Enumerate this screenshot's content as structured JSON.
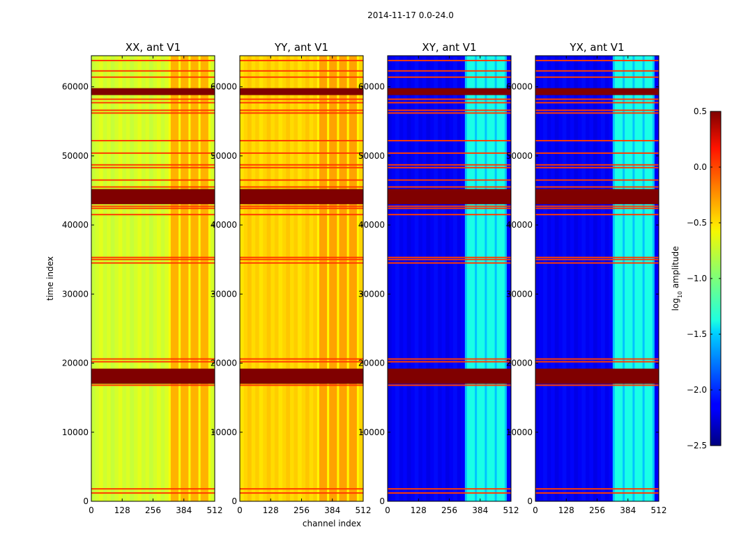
{
  "figure_title": "2014-11-17 0.0-24.0",
  "chart_data": {
    "type": "heatmap",
    "xlabel": "channel index",
    "ylabel": "time index",
    "xlim": [
      0,
      512
    ],
    "ylim": [
      0,
      64500
    ],
    "xticks": [
      0,
      128,
      256,
      384,
      512
    ],
    "yticks": [
      0,
      10000,
      20000,
      30000,
      40000,
      50000,
      60000
    ],
    "xtick_labels": [
      "0",
      "128",
      "256",
      "384",
      "512"
    ],
    "ytick_labels": [
      "0",
      "10000",
      "20000",
      "30000",
      "40000",
      "50000",
      "60000"
    ],
    "panels": [
      {
        "title": "XX, ant V1",
        "base_log10_amp": -0.75,
        "rfi_band_log10_amp": -0.4
      },
      {
        "title": "YY, ant V1",
        "base_log10_amp": -0.5,
        "rfi_band_log10_amp": -0.35
      },
      {
        "title": "XY, ant V1",
        "base_log10_amp": -2.15,
        "rfi_band_log10_amp": -1.3
      },
      {
        "title": "YX, ant V1",
        "base_log10_amp": -2.15,
        "rfi_band_log10_amp": -1.3
      }
    ],
    "rfi_channel_range": [
      325,
      490
    ],
    "saturated_time_bands": [
      [
        17000,
        19200
      ],
      [
        43000,
        45200
      ],
      [
        58800,
        59800
      ]
    ],
    "horizontal_line_times": [
      1200,
      1800,
      16800,
      20200,
      20600,
      34500,
      35000,
      35300,
      41500,
      42400,
      42700,
      43300,
      44000,
      45500,
      46500,
      48300,
      48700,
      50400,
      52200,
      56200,
      56600,
      57700,
      58200,
      61400,
      62300,
      63800
    ],
    "colorbar": {
      "label": "log10 amplitude",
      "label_prefix": "log",
      "label_sub": "10",
      "label_suffix": " amplitude",
      "range": [
        -2.5,
        0.5
      ],
      "ticks": [
        0.5,
        0.0,
        -0.5,
        -1.0,
        -1.5,
        -2.0,
        -2.5
      ],
      "tick_labels": [
        "0.5",
        "0.0",
        "−0.5",
        "−1.0",
        "−1.5",
        "−2.0",
        "−2.5"
      ]
    }
  }
}
